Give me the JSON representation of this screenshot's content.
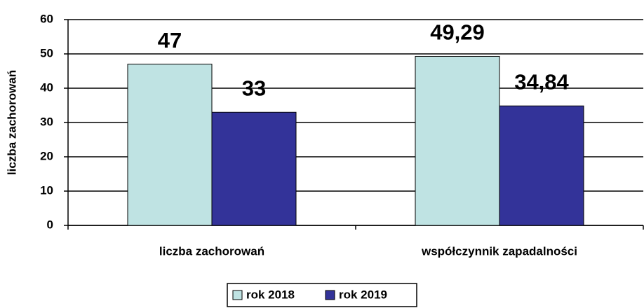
{
  "chart_data": {
    "type": "bar",
    "y_label": "liczba zachorowań",
    "categories": [
      "liczba zachorowań",
      "współczynnik zapadalności"
    ],
    "series": [
      {
        "name": "rok 2018",
        "color": "#bfe3e3",
        "values": [
          47,
          49.29
        ],
        "value_labels": [
          "47",
          "49,29"
        ]
      },
      {
        "name": "rok 2019",
        "color": "#333399",
        "values": [
          33,
          34.84
        ],
        "value_labels": [
          "33",
          "34,84"
        ]
      }
    ],
    "ylim": [
      0,
      60
    ],
    "yticks": [
      0,
      10,
      20,
      30,
      40,
      50,
      60
    ],
    "grid": true,
    "legend": "bottom"
  }
}
